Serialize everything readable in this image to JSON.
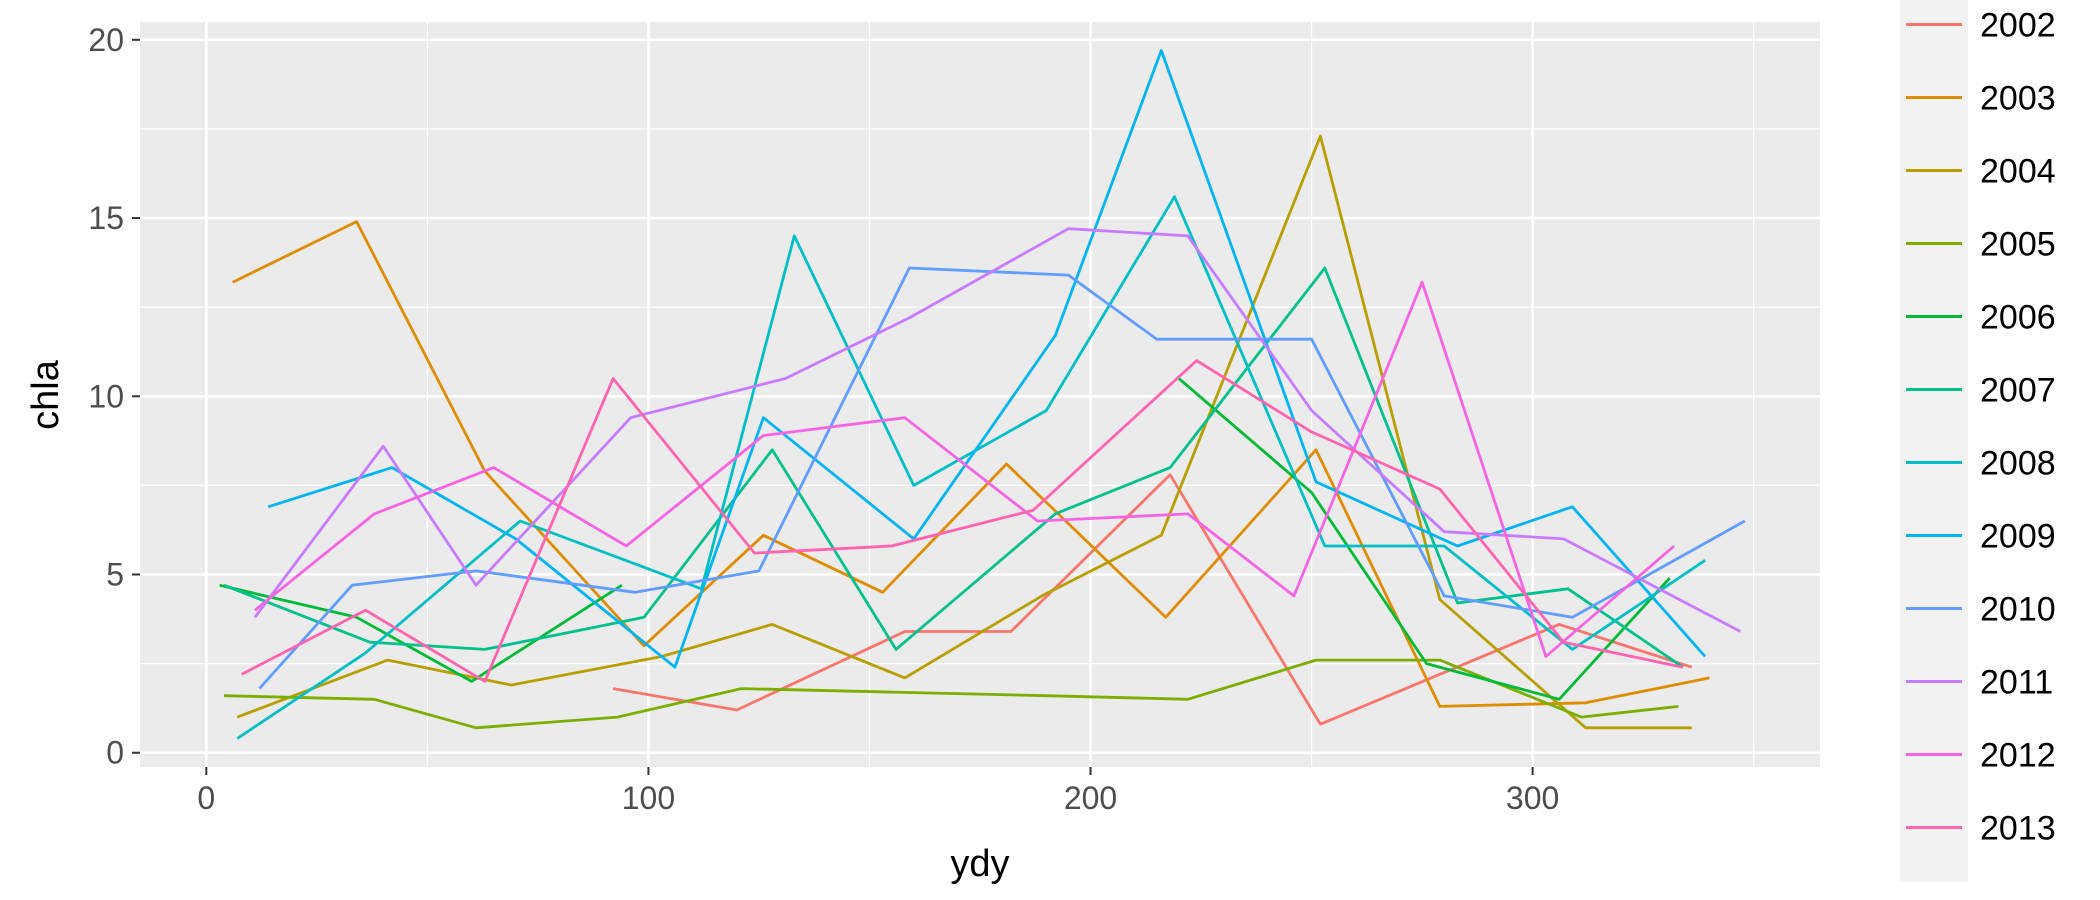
{
  "chart_data": {
    "type": "line",
    "title": "",
    "xlabel": "ydy",
    "ylabel": "chla",
    "xlim": [
      -15,
      365
    ],
    "ylim": [
      -0.4,
      20.5
    ],
    "x_ticks": [
      0,
      100,
      200,
      300
    ],
    "y_ticks": [
      0,
      5,
      10,
      15,
      20
    ],
    "grid": true,
    "panel_background": "#ebebeb",
    "legend_position": "right",
    "series": [
      {
        "name": "2002",
        "color": "#F8766D",
        "x": [
          92,
          120,
          158,
          182,
          218,
          252,
          306,
          336
        ],
        "y": [
          1.8,
          1.2,
          3.4,
          3.4,
          7.8,
          0.8,
          3.6,
          2.4
        ]
      },
      {
        "name": "2003",
        "color": "#DE8C00",
        "x": [
          6,
          34,
          63,
          99,
          126,
          153,
          181,
          217,
          251,
          279,
          312,
          340
        ],
        "y": [
          13.2,
          14.9,
          7.9,
          3.0,
          6.1,
          4.5,
          8.1,
          3.8,
          8.5,
          1.3,
          1.4,
          2.1
        ]
      },
      {
        "name": "2004",
        "color": "#B79F00",
        "x": [
          7,
          41,
          69,
          103,
          128,
          158,
          189,
          216,
          252,
          279,
          312,
          336
        ],
        "y": [
          1.0,
          2.6,
          1.9,
          2.7,
          3.6,
          2.1,
          4.4,
          6.1,
          17.3,
          4.3,
          0.7,
          0.7
        ]
      },
      {
        "name": "2005",
        "color": "#7CAE00",
        "x": [
          4,
          38,
          61,
          93,
          121,
          155,
          190,
          222,
          251,
          279,
          311,
          333
        ],
        "y": [
          1.6,
          1.5,
          0.7,
          1.0,
          1.8,
          1.7,
          1.6,
          1.5,
          2.6,
          2.6,
          1.0,
          1.3
        ]
      },
      {
        "name": "2006",
        "color": "#00BA38",
        "x": [
          3,
          34,
          60,
          94
        ],
        "y": [
          4.7,
          3.8,
          2.0,
          4.7
        ]
      },
      {
        "name": "2006",
        "color": "#00BA38",
        "x": [
          220,
          250,
          276,
          306,
          331
        ],
        "y": [
          10.5,
          7.3,
          2.5,
          1.5,
          4.9
        ]
      },
      {
        "name": "2007",
        "color": "#00C08B",
        "x": [
          4,
          37,
          63,
          99,
          128,
          156,
          192,
          218,
          253,
          283,
          308,
          334
        ],
        "y": [
          4.7,
          3.1,
          2.9,
          3.8,
          8.5,
          2.9,
          6.7,
          8.0,
          13.6,
          4.2,
          4.6,
          2.4
        ]
      },
      {
        "name": "2008",
        "color": "#00BFC4",
        "x": [
          7,
          36,
          71,
          112,
          133,
          160,
          190,
          219,
          253,
          280,
          309,
          339
        ],
        "y": [
          0.4,
          2.8,
          6.5,
          4.6,
          14.5,
          7.5,
          9.6,
          15.6,
          5.8,
          5.8,
          2.9,
          5.4
        ]
      },
      {
        "name": "2009",
        "color": "#00B4F0",
        "x": [
          14,
          42,
          70,
          106,
          126,
          160,
          192,
          216,
          251,
          283,
          309,
          339
        ],
        "y": [
          6.9,
          8.0,
          6.0,
          2.4,
          9.4,
          6.0,
          11.7,
          19.7,
          7.6,
          5.8,
          6.9,
          2.7
        ]
      },
      {
        "name": "2010",
        "color": "#619CFF",
        "x": [
          12,
          33,
          61,
          97,
          125,
          159,
          195,
          215,
          250,
          280,
          309,
          348
        ],
        "y": [
          1.8,
          4.7,
          5.1,
          4.5,
          5.1,
          13.6,
          13.4,
          11.6,
          11.6,
          4.4,
          3.8,
          6.5
        ]
      },
      {
        "name": "2011",
        "color": "#C77CFF",
        "x": [
          11,
          40,
          61,
          96,
          131,
          159,
          195,
          222,
          250,
          280,
          307,
          347
        ],
        "y": [
          3.8,
          8.6,
          4.7,
          9.4,
          10.5,
          12.2,
          14.7,
          14.5,
          9.6,
          6.2,
          6.0,
          3.4
        ]
      },
      {
        "name": "2012",
        "color": "#F564E3",
        "x": [
          11,
          38,
          65,
          95,
          126,
          158,
          188,
          222,
          246,
          275,
          303,
          332
        ],
        "y": [
          4.0,
          6.7,
          8.0,
          5.8,
          8.9,
          9.4,
          6.5,
          6.7,
          4.4,
          13.2,
          2.7,
          5.8
        ]
      },
      {
        "name": "2013",
        "color": "#FF64B0",
        "x": [
          8,
          36,
          63,
          92,
          124,
          155,
          187,
          224,
          250,
          279,
          307,
          334
        ],
        "y": [
          2.2,
          4.0,
          2.0,
          10.5,
          5.6,
          5.8,
          6.8,
          11.0,
          9.0,
          7.4,
          3.1,
          2.4
        ]
      }
    ],
    "legend": [
      {
        "label": "2002",
        "color": "#F8766D"
      },
      {
        "label": "2003",
        "color": "#DE8C00"
      },
      {
        "label": "2004",
        "color": "#B79F00"
      },
      {
        "label": "2005",
        "color": "#7CAE00"
      },
      {
        "label": "2006",
        "color": "#00BA38"
      },
      {
        "label": "2007",
        "color": "#00C08B"
      },
      {
        "label": "2008",
        "color": "#00BFC4"
      },
      {
        "label": "2009",
        "color": "#00B4F0"
      },
      {
        "label": "2010",
        "color": "#619CFF"
      },
      {
        "label": "2011",
        "color": "#C77CFF"
      },
      {
        "label": "2012",
        "color": "#F564E3"
      },
      {
        "label": "2013",
        "color": "#FF64B0"
      }
    ]
  }
}
